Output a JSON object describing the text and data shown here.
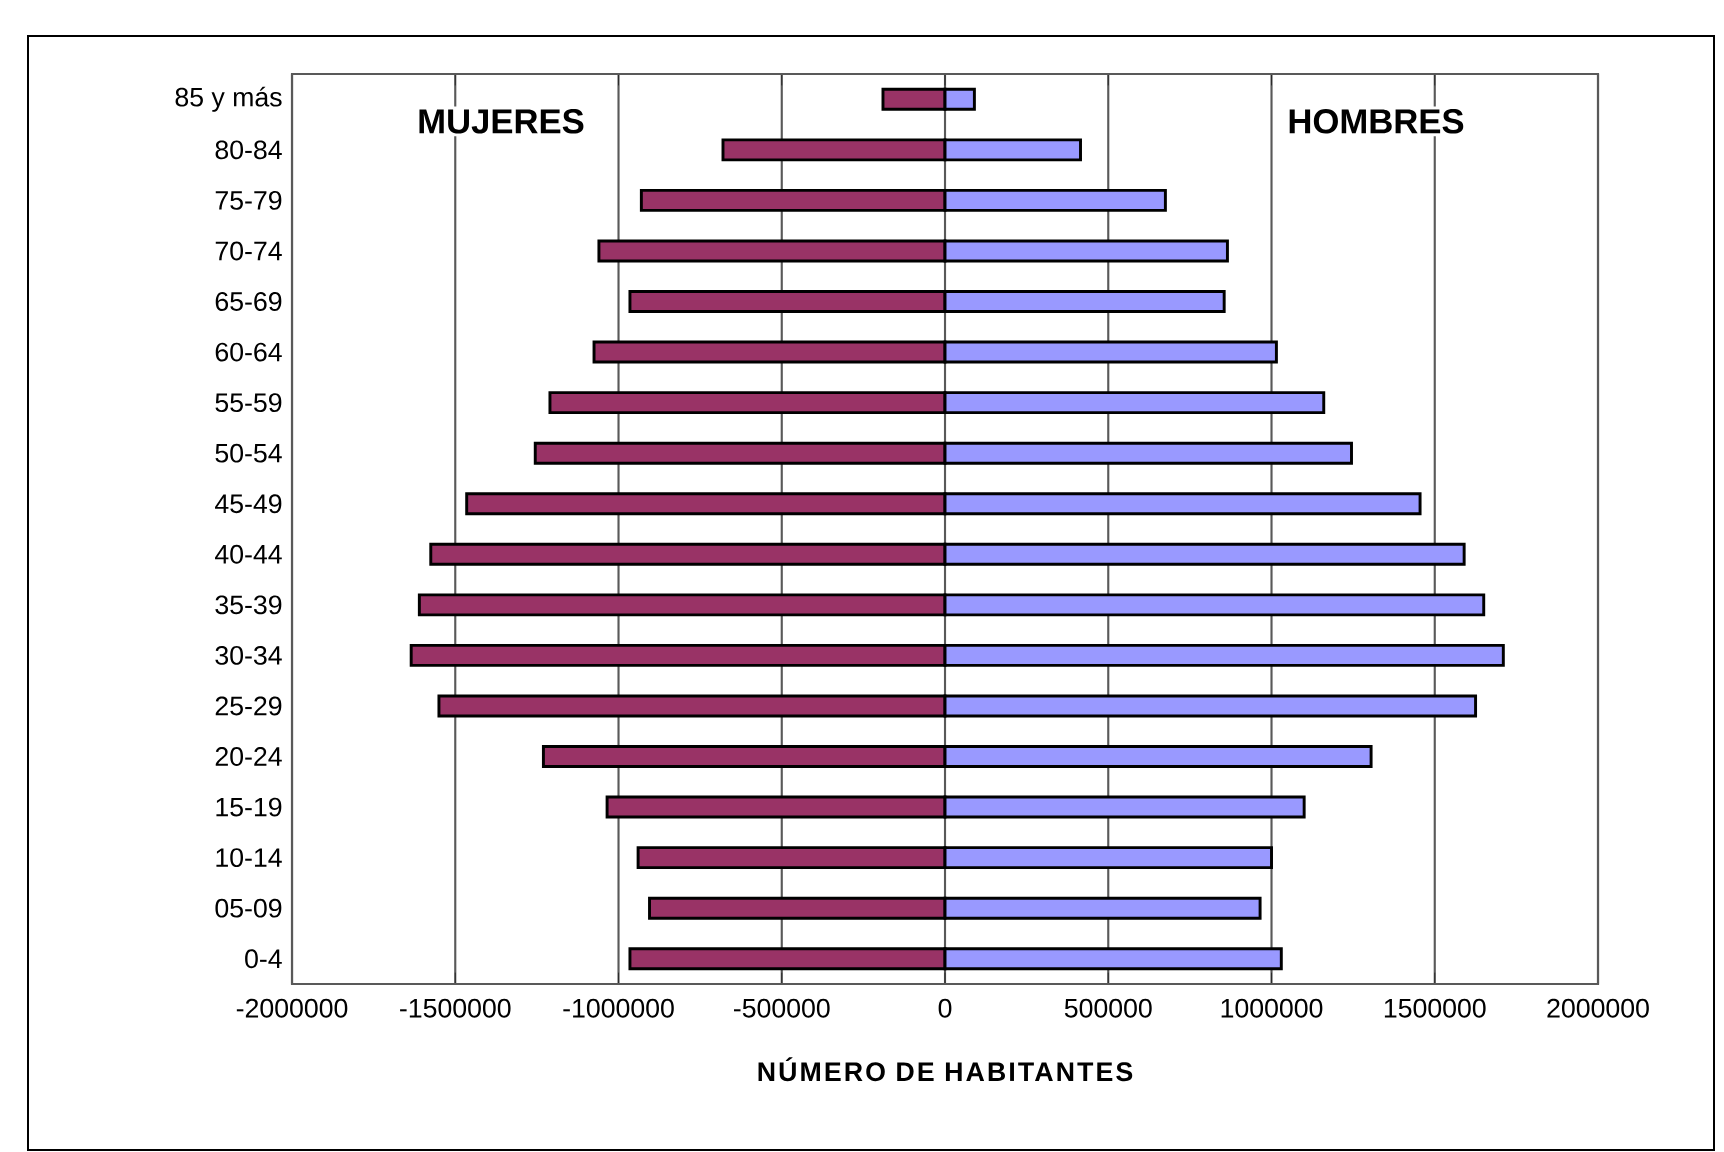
{
  "chart_data": {
    "type": "bar",
    "orientation": "horizontal",
    "xlabel": "NÚMERO DE HABITANTES",
    "categories": [
      "85 y más",
      "80-84",
      "75-79",
      "70-74",
      "65-69",
      "60-64",
      "55-59",
      "50-54",
      "45-49",
      "40-44",
      "35-39",
      "30-34",
      "25-29",
      "20-24",
      "15-19",
      "10-14",
      "05-09",
      "0-4"
    ],
    "series": [
      {
        "name": "MUJERES",
        "color": "#993366",
        "values": [
          -190000,
          -680000,
          -930000,
          -1060000,
          -965000,
          -1075000,
          -1210000,
          -1255000,
          -1465000,
          -1575000,
          -1610000,
          -1635000,
          -1550000,
          -1230000,
          -1035000,
          -940000,
          -905000,
          -965000
        ]
      },
      {
        "name": "HOMBRES",
        "color": "#9999ff",
        "values": [
          90000,
          415000,
          675000,
          865000,
          855000,
          1015000,
          1160000,
          1245000,
          1455000,
          1590000,
          1650000,
          1710000,
          1625000,
          1305000,
          1100000,
          1000000,
          965000,
          1030000
        ]
      }
    ],
    "xlim": [
      -2000000,
      2000000
    ],
    "xticks": [
      -2000000,
      -1500000,
      -1000000,
      -500000,
      0,
      500000,
      1000000,
      1500000,
      2000000
    ],
    "grid": "x",
    "legend": "top",
    "stacked": true
  }
}
